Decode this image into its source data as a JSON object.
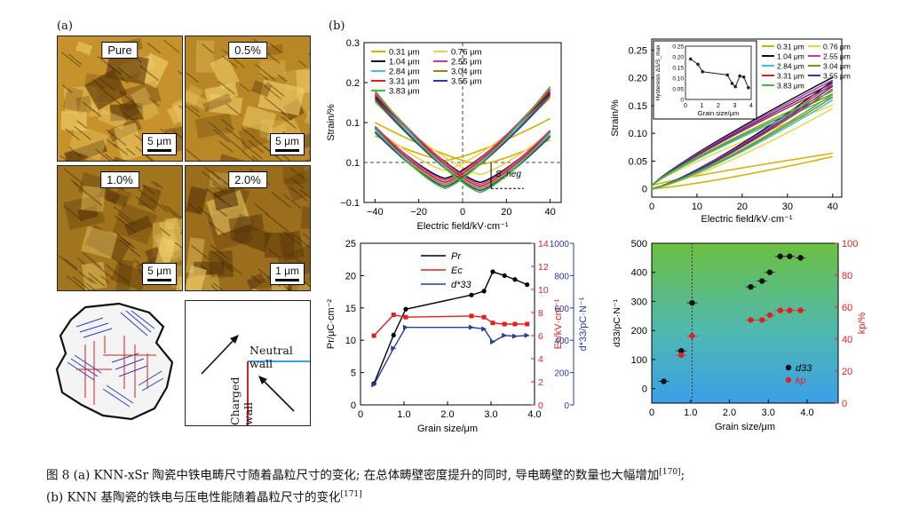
{
  "panel_a": {
    "label": "(a)",
    "images": [
      {
        "label": "Pure",
        "scale": "5 μm",
        "color": "#c6922c"
      },
      {
        "label": "0.5%",
        "scale": "5 μm",
        "color": "#b98826"
      },
      {
        "label": "1.0%",
        "scale": "5 μm",
        "color": "#a0751e"
      },
      {
        "label": "2.0%",
        "scale": "1 μm",
        "color": "#9a6e1c"
      }
    ],
    "diagram": {
      "neutral_wall": "Neutral wall",
      "charged_wall": "Charged wall"
    }
  },
  "panel_b": {
    "label": "(b)"
  },
  "chart_data": [
    {
      "type": "line",
      "id": "strain_bipolar",
      "xlabel": "Electric field/kV·cm⁻¹",
      "ylabel": "Strain/%",
      "xlim": [
        -45,
        45
      ],
      "ylim": [
        -0.1,
        0.3
      ],
      "xticks": [
        -40,
        -20,
        0,
        20,
        40
      ],
      "xtick_labels": [
        "−40",
        "−20",
        "0",
        "20",
        "40"
      ],
      "yticks": [
        -0.1,
        0,
        0.1,
        0.2,
        0.3
      ],
      "ytick_labels": [
        "−0.1",
        "0.1",
        "0.1",
        "0.2",
        "0.3"
      ],
      "annotation": "S_neg",
      "series": [
        {
          "name": "0.31 μm",
          "color": "#d4b000",
          "peak": 0.11,
          "neg": 0.005
        },
        {
          "name": "0.76 μm",
          "color": "#e8d54a",
          "peak": 0.16,
          "neg": -0.02
        },
        {
          "name": "1.04 μm",
          "color": "#111111",
          "peak": 0.175,
          "neg": -0.04
        },
        {
          "name": "2.55 μm",
          "color": "#c23aa8",
          "peak": 0.185,
          "neg": -0.045
        },
        {
          "name": "2.84 μm",
          "color": "#38c4d8",
          "peak": 0.17,
          "neg": -0.05
        },
        {
          "name": "3.04 μm",
          "color": "#8a8a1a",
          "peak": 0.165,
          "neg": -0.055
        },
        {
          "name": "3.31 μm",
          "color": "#e02020",
          "peak": 0.18,
          "neg": -0.05
        },
        {
          "name": "3.55 μm",
          "color": "#283c9c",
          "peak": 0.17,
          "neg": -0.06
        },
        {
          "name": "3.83 μm",
          "color": "#4cb83c",
          "peak": 0.19,
          "neg": -0.065
        }
      ]
    },
    {
      "type": "line",
      "id": "strain_unipolar",
      "xlabel": "Electric field/kV·cm⁻¹",
      "ylabel": "Strain/%",
      "xlim": [
        0,
        42
      ],
      "ylim": [
        -0.015,
        0.27
      ],
      "xticks": [
        0,
        10,
        20,
        30,
        40
      ],
      "xtick_labels": [
        "0",
        "10",
        "20",
        "30",
        "40"
      ],
      "yticks": [
        0,
        0.05,
        0.1,
        0.15,
        0.2,
        0.25
      ],
      "ytick_labels": [
        "0",
        "0.05",
        "0.10",
        "0.15",
        "0.20",
        "0.25"
      ],
      "series": [
        {
          "name": "0.31 μm",
          "color": "#d4b000",
          "max": 0.058
        },
        {
          "name": "0.76 μm",
          "color": "#e8d54a",
          "max": 0.145
        },
        {
          "name": "1.04 μm",
          "color": "#111111",
          "max": 0.195
        },
        {
          "name": "2.55 μm",
          "color": "#c23aa8",
          "max": 0.19
        },
        {
          "name": "2.84 μm",
          "color": "#38c4d8",
          "max": 0.16
        },
        {
          "name": "3.04 μm",
          "color": "#8a8a1a",
          "max": 0.165
        },
        {
          "name": "3.31 μm",
          "color": "#e02020",
          "max": 0.18
        },
        {
          "name": "3.55 μm",
          "color": "#283c9c",
          "max": 0.185
        },
        {
          "name": "3.83 μm",
          "color": "#4cb83c",
          "max": 0.17
        }
      ],
      "inset": {
        "xlabel": "Grain size/μm",
        "ylabel": "Hysteresis ΔS/S_max",
        "xlim": [
          0,
          4
        ],
        "ylim": [
          0,
          0.25
        ],
        "xticks": [
          0,
          1,
          2,
          3,
          4
        ],
        "yticks": [
          0,
          0.05,
          0.1,
          0.15,
          0.2,
          0.25
        ],
        "ytick_labels": [
          "0",
          "0.05",
          "0.10",
          "0.15",
          "0.20",
          "0.25"
        ],
        "x": [
          0.31,
          0.76,
          1.04,
          2.55,
          2.84,
          3.04,
          3.31,
          3.55,
          3.83
        ],
        "y": [
          0.19,
          0.165,
          0.13,
          0.115,
          0.075,
          0.06,
          0.11,
          0.105,
          0.055
        ]
      }
    },
    {
      "type": "line",
      "id": "pr_ec_d33",
      "xlabel": "Grain size/μm",
      "xlim": [
        0,
        4
      ],
      "xticks": [
        0,
        1,
        2,
        3,
        4
      ],
      "xtick_labels": [
        "0",
        "1.0",
        "2.0",
        "3.0",
        "4.0"
      ],
      "left_axis": {
        "label": "Pr/μC·cm⁻²",
        "ylim": [
          0,
          25
        ],
        "ticks": [
          0,
          5,
          10,
          15,
          20,
          25
        ],
        "color": "#000000"
      },
      "right_axis_1": {
        "label": "Ec/kV·cm⁻¹",
        "ylim": [
          0,
          14
        ],
        "ticks": [
          0,
          2,
          4,
          6,
          8,
          10,
          12,
          14
        ],
        "color": "#e02020"
      },
      "right_axis_2": {
        "label": "d*33/pC·N⁻¹",
        "ylim": [
          0,
          1000
        ],
        "ticks": [
          0,
          200,
          400,
          600,
          800,
          1000
        ],
        "color": "#283c9c"
      },
      "legend": [
        "Pr",
        "Ec",
        "d*33"
      ],
      "series": [
        {
          "name": "Pr",
          "axis": "left",
          "color": "#000000",
          "x": [
            0.31,
            0.76,
            1.04,
            2.55,
            2.84,
            3.04,
            3.31,
            3.55,
            3.83
          ],
          "y": [
            3.3,
            10.8,
            14.8,
            17.0,
            17.6,
            20.6,
            20.0,
            19.4,
            18.6
          ]
        },
        {
          "name": "Ec",
          "axis": "right_1",
          "color": "#e02020",
          "x": [
            0.31,
            0.76,
            1.04,
            2.55,
            2.84,
            3.04,
            3.31,
            3.55,
            3.83
          ],
          "y": [
            6.0,
            7.8,
            7.6,
            7.7,
            7.6,
            7.1,
            7.0,
            7.0,
            7.0
          ]
        },
        {
          "name": "d*33",
          "axis": "right_2",
          "color": "#283c9c",
          "x": [
            0.31,
            0.76,
            1.04,
            2.55,
            2.84,
            3.04,
            3.31,
            3.55,
            3.83
          ],
          "y": [
            125,
            350,
            480,
            480,
            470,
            390,
            430,
            425,
            430
          ]
        }
      ]
    },
    {
      "type": "scatter",
      "id": "d33_kp",
      "xlabel": "Grain size/μm",
      "xlim": [
        0,
        4.8
      ],
      "xticks": [
        0,
        1,
        2,
        3,
        4
      ],
      "xtick_labels": [
        "0",
        "1.0",
        "2.0",
        "3.0",
        "4.0"
      ],
      "left_axis": {
        "label": "d33/pC·N⁻¹",
        "ylim": [
          -50,
          500
        ],
        "ticks": [
          0,
          100,
          200,
          300,
          400,
          500
        ]
      },
      "right_axis": {
        "label": "kp/%",
        "ylim": [
          0,
          100
        ],
        "ticks": [
          0,
          20,
          40,
          60,
          80,
          100
        ],
        "color": "#e02020"
      },
      "legend": [
        "d33",
        "kp"
      ],
      "series": [
        {
          "name": "d33",
          "axis": "left",
          "color": "#111111",
          "x": [
            0.31,
            0.76,
            1.04,
            2.55,
            2.84,
            3.04,
            3.31,
            3.55,
            3.83
          ],
          "y": [
            25,
            130,
            295,
            350,
            370,
            400,
            455,
            455,
            450
          ]
        },
        {
          "name": "kp",
          "axis": "right",
          "color": "#e02020",
          "x": [
            0.76,
            1.04,
            2.55,
            2.84,
            3.04,
            3.31,
            3.55,
            3.83
          ],
          "y": [
            30,
            42,
            52,
            52,
            55,
            58,
            58,
            58
          ]
        }
      ]
    }
  ],
  "caption": {
    "line1": "图 8  (a) KNN-xSr 陶瓷中铁电畴尺寸随着晶粒尺寸的变化; 在总体畴壁密度提升的同时, 导电畴壁的数量也大幅增加",
    "ref1": "[170]",
    "line1_end": ";",
    "line2": "(b) KNN 基陶瓷的铁电与压电性能随着晶粒尺寸的变化",
    "ref2": "[171]"
  }
}
